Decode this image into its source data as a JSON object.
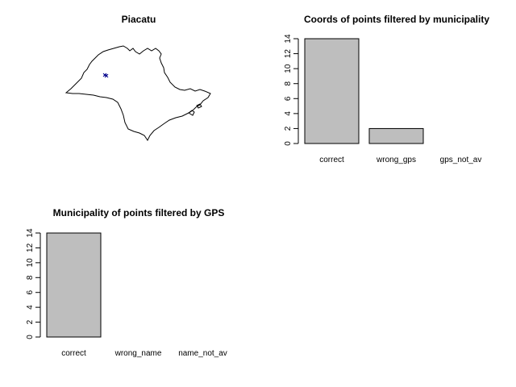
{
  "map_panel": {
    "title": "Piacatu"
  },
  "chart_data": [
    {
      "type": "bar",
      "title": "Coords of points filtered by municipality",
      "categories": [
        "correct",
        "wrong_gps",
        "gps_not_av"
      ],
      "values": [
        14,
        2,
        0
      ],
      "xlabel": "",
      "ylabel": "",
      "ylim": [
        0,
        14
      ],
      "yticks": [
        0,
        2,
        4,
        6,
        8,
        10,
        12,
        14
      ],
      "grid": false,
      "bar_color": "#bebebe"
    },
    {
      "type": "bar",
      "title": "Municipality of points filtered by GPS",
      "categories": [
        "correct",
        "wrong_name",
        "name_not_av"
      ],
      "values": [
        14,
        0,
        0
      ],
      "xlabel": "",
      "ylabel": "",
      "ylim": [
        0,
        14
      ],
      "yticks": [
        0,
        2,
        4,
        6,
        8,
        10,
        12,
        14
      ],
      "grid": false,
      "bar_color": "#bebebe"
    }
  ],
  "colors": {
    "background": "#ffffff",
    "bar_fill": "#bebebe",
    "outline": "#000000",
    "points": "#00008b"
  }
}
